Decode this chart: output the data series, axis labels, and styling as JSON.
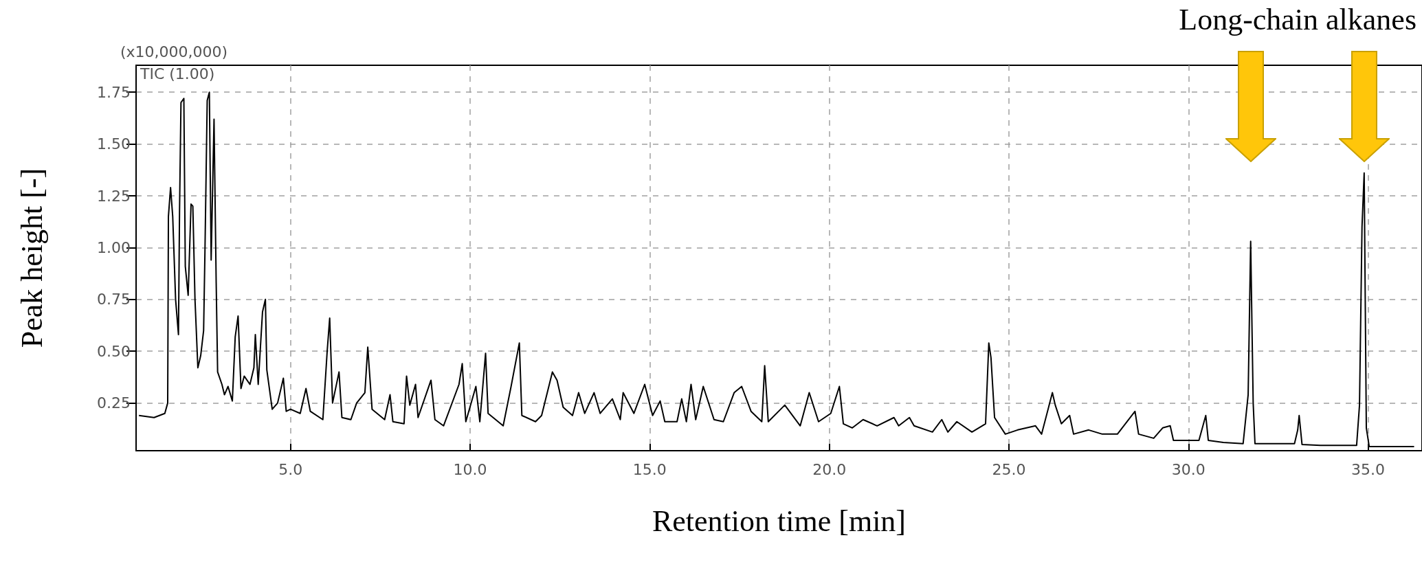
{
  "chart_data": {
    "type": "line",
    "xlabel": "Retention time [min]",
    "ylabel": "Peak height [-]",
    "annotations": [
      "(x10,000,000)",
      "TIC (1.00)",
      "Long-chain alkanes"
    ],
    "xlim": [
      0.7,
      36.5
    ],
    "xticks": [
      {
        "value": 5,
        "label": "5.0"
      },
      {
        "value": 10,
        "label": "10.0"
      },
      {
        "value": 15,
        "label": "15.0"
      },
      {
        "value": 20,
        "label": "20.0"
      },
      {
        "value": 25,
        "label": "25.0"
      },
      {
        "value": 30,
        "label": "30.0"
      },
      {
        "value": 35,
        "label": "35.0"
      }
    ],
    "ylim": [
      0.02,
      1.88
    ],
    "yticks": [
      {
        "value": 0.25,
        "label": "0.25"
      },
      {
        "value": 0.5,
        "label": "0.50"
      },
      {
        "value": 0.75,
        "label": "0.75"
      },
      {
        "value": 1,
        "label": "1.00"
      },
      {
        "value": 1.25,
        "label": "1.25"
      },
      {
        "value": 1.5,
        "label": "1.50"
      },
      {
        "value": 1.75,
        "label": "1.75"
      }
    ],
    "grid": true,
    "series": [
      {
        "color": "#000000",
        "x": [
          0.78,
          1.2,
          1.5,
          1.58,
          1.6,
          1.66,
          1.72,
          1.8,
          1.88,
          1.91,
          1.95,
          2.03,
          2.07,
          2.15,
          2.23,
          2.28,
          2.34,
          2.42,
          2.5,
          2.58,
          2.62,
          2.68,
          2.74,
          2.79,
          2.87,
          2.93,
          2.97,
          3.09,
          3.16,
          3.26,
          3.38,
          3.46,
          3.54,
          3.62,
          3.71,
          3.87,
          3.98,
          4.02,
          4.1,
          4.22,
          4.3,
          4.34,
          4.49,
          4.64,
          4.8,
          4.88,
          5.0,
          5.27,
          5.43,
          5.55,
          5.9,
          6.02,
          6.09,
          6.17,
          6.35,
          6.43,
          6.68,
          6.84,
          7.07,
          7.15,
          7.27,
          7.62,
          7.77,
          7.85,
          8.16,
          8.23,
          8.32,
          8.48,
          8.55,
          8.91,
          9.02,
          9.26,
          9.69,
          9.78,
          9.88,
          10.16,
          10.27,
          10.43,
          10.5,
          10.92,
          11.14,
          11.37,
          11.44,
          11.82,
          11.99,
          12.29,
          12.42,
          12.59,
          12.85,
          13.02,
          13.19,
          13.45,
          13.62,
          13.96,
          14.18,
          14.26,
          14.56,
          14.86,
          15.08,
          15.29,
          15.42,
          15.76,
          15.89,
          16.02,
          16.15,
          16.28,
          16.49,
          16.79,
          17.05,
          17.35,
          17.56,
          17.82,
          18.12,
          18.2,
          18.3,
          18.76,
          19.19,
          19.44,
          19.7,
          20.04,
          20.28,
          20.39,
          20.64,
          20.94,
          21.33,
          21.8,
          21.93,
          22.23,
          22.36,
          22.87,
          23.13,
          23.3,
          23.55,
          23.97,
          24.35,
          24.44,
          24.5,
          24.6,
          24.9,
          25.24,
          25.74,
          25.91,
          26.21,
          26.29,
          26.46,
          26.69,
          26.8,
          27.22,
          27.6,
          28.02,
          28.51,
          28.61,
          29.03,
          29.28,
          29.49,
          29.58,
          30.29,
          30.48,
          30.55,
          30.97,
          31.52,
          31.66,
          31.73,
          31.8,
          31.85,
          32.4,
          32.95,
          33.04,
          33.08,
          33.16,
          33.67,
          34.68,
          34.76,
          34.83,
          34.89,
          34.95,
          35.03,
          36.28
        ],
        "values": [
          0.19,
          0.18,
          0.2,
          0.25,
          1.15,
          1.29,
          1.15,
          0.75,
          0.58,
          1.18,
          1.7,
          1.72,
          0.91,
          0.77,
          1.21,
          1.2,
          0.75,
          0.42,
          0.48,
          0.6,
          1.01,
          1.71,
          1.75,
          0.94,
          1.62,
          0.83,
          0.4,
          0.34,
          0.29,
          0.33,
          0.26,
          0.57,
          0.67,
          0.32,
          0.38,
          0.34,
          0.42,
          0.58,
          0.34,
          0.69,
          0.75,
          0.41,
          0.22,
          0.25,
          0.37,
          0.21,
          0.22,
          0.2,
          0.32,
          0.21,
          0.17,
          0.5,
          0.66,
          0.25,
          0.4,
          0.18,
          0.17,
          0.25,
          0.3,
          0.52,
          0.22,
          0.17,
          0.29,
          0.16,
          0.15,
          0.38,
          0.24,
          0.34,
          0.18,
          0.36,
          0.17,
          0.14,
          0.34,
          0.44,
          0.16,
          0.33,
          0.16,
          0.49,
          0.2,
          0.14,
          0.33,
          0.54,
          0.19,
          0.16,
          0.19,
          0.4,
          0.36,
          0.23,
          0.19,
          0.3,
          0.2,
          0.3,
          0.2,
          0.27,
          0.17,
          0.3,
          0.2,
          0.34,
          0.19,
          0.26,
          0.16,
          0.16,
          0.27,
          0.16,
          0.34,
          0.17,
          0.33,
          0.17,
          0.16,
          0.3,
          0.33,
          0.21,
          0.16,
          0.43,
          0.16,
          0.24,
          0.14,
          0.3,
          0.16,
          0.2,
          0.33,
          0.15,
          0.13,
          0.17,
          0.14,
          0.18,
          0.14,
          0.18,
          0.14,
          0.11,
          0.17,
          0.11,
          0.16,
          0.11,
          0.15,
          0.54,
          0.47,
          0.18,
          0.1,
          0.12,
          0.14,
          0.1,
          0.3,
          0.24,
          0.15,
          0.19,
          0.1,
          0.12,
          0.1,
          0.1,
          0.21,
          0.1,
          0.08,
          0.13,
          0.14,
          0.07,
          0.07,
          0.19,
          0.07,
          0.06,
          0.054,
          0.29,
          1.03,
          0.25,
          0.054,
          0.054,
          0.054,
          0.12,
          0.19,
          0.05,
          0.046,
          0.046,
          0.24,
          1.1,
          1.36,
          0.13,
          0.04,
          0.04
        ]
      }
    ]
  }
}
